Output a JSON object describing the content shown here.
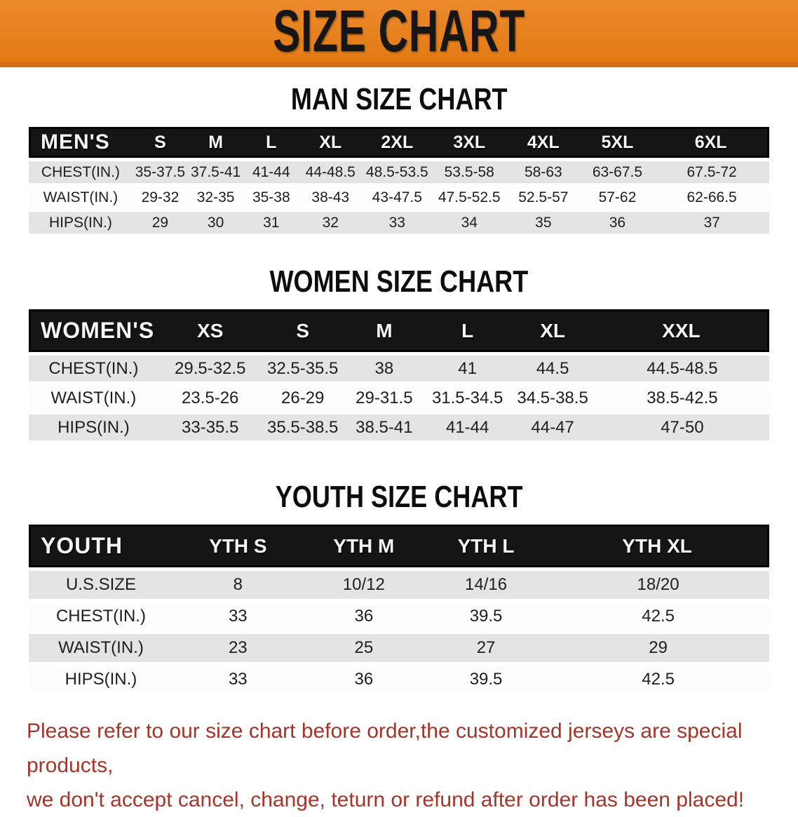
{
  "banner": {
    "title": "SIZE CHART",
    "bg_color": "#E8821E",
    "text_color": "#161616"
  },
  "sections": [
    {
      "title": "MAN SIZE CHART",
      "header_label": "MEN'S",
      "columns": [
        "S",
        "M",
        "L",
        "XL",
        "2XL",
        "3XL",
        "4XL",
        "5XL",
        "6XL"
      ],
      "rows": [
        {
          "label": "CHEST(IN.)",
          "values": [
            "35-37.5",
            "37.5-41",
            "41-44",
            "44-48.5",
            "48.5-53.5",
            "53.5-58",
            "58-63",
            "63-67.5",
            "67.5-72"
          ]
        },
        {
          "label": "WAIST(IN.)",
          "values": [
            "29-32",
            "32-35",
            "35-38",
            "38-43",
            "43-47.5",
            "47.5-52.5",
            "52.5-57",
            "57-62",
            "62-66.5"
          ]
        },
        {
          "label": "HIPS(IN.)",
          "values": [
            "29",
            "30",
            "31",
            "32",
            "33",
            "34",
            "35",
            "36",
            "37"
          ]
        }
      ]
    },
    {
      "title": "WOMEN SIZE CHART",
      "header_label": "WOMEN'S",
      "columns": [
        "XS",
        "S",
        "M",
        "L",
        "XL",
        "XXL"
      ],
      "rows": [
        {
          "label": "CHEST(IN.)",
          "values": [
            "29.5-32.5",
            "32.5-35.5",
            "38",
            "41",
            "44.5",
            "44.5-48.5"
          ]
        },
        {
          "label": "WAIST(IN.)",
          "values": [
            "23.5-26",
            "26-29",
            "29-31.5",
            "31.5-34.5",
            "34.5-38.5",
            "38.5-42.5"
          ]
        },
        {
          "label": "HIPS(IN.)",
          "values": [
            "33-35.5",
            "35.5-38.5",
            "38.5-41",
            "41-44",
            "44-47",
            "47-50"
          ]
        }
      ]
    },
    {
      "title": "YOUTH SIZE CHART",
      "header_label": "YOUTH",
      "columns": [
        "YTH S",
        "YTH M",
        "YTH L",
        "YTH XL"
      ],
      "rows": [
        {
          "label": "U.S.SIZE",
          "values": [
            "8",
            "10/12",
            "14/16",
            "18/20"
          ]
        },
        {
          "label": "CHEST(IN.)",
          "values": [
            "33",
            "36",
            "39.5",
            "42.5"
          ]
        },
        {
          "label": "WAIST(IN.)",
          "values": [
            "23",
            "25",
            "27",
            "29"
          ]
        },
        {
          "label": "HIPS(IN.)",
          "values": [
            "33",
            "36",
            "39.5",
            "42.5"
          ]
        }
      ]
    }
  ],
  "footer": {
    "line1": "Please refer to our size chart before order,the customized jerseys are special products,",
    "line2": "we don't accept cancel, change, teturn or refund after order has been placed!",
    "text_color": "#A5342A"
  }
}
